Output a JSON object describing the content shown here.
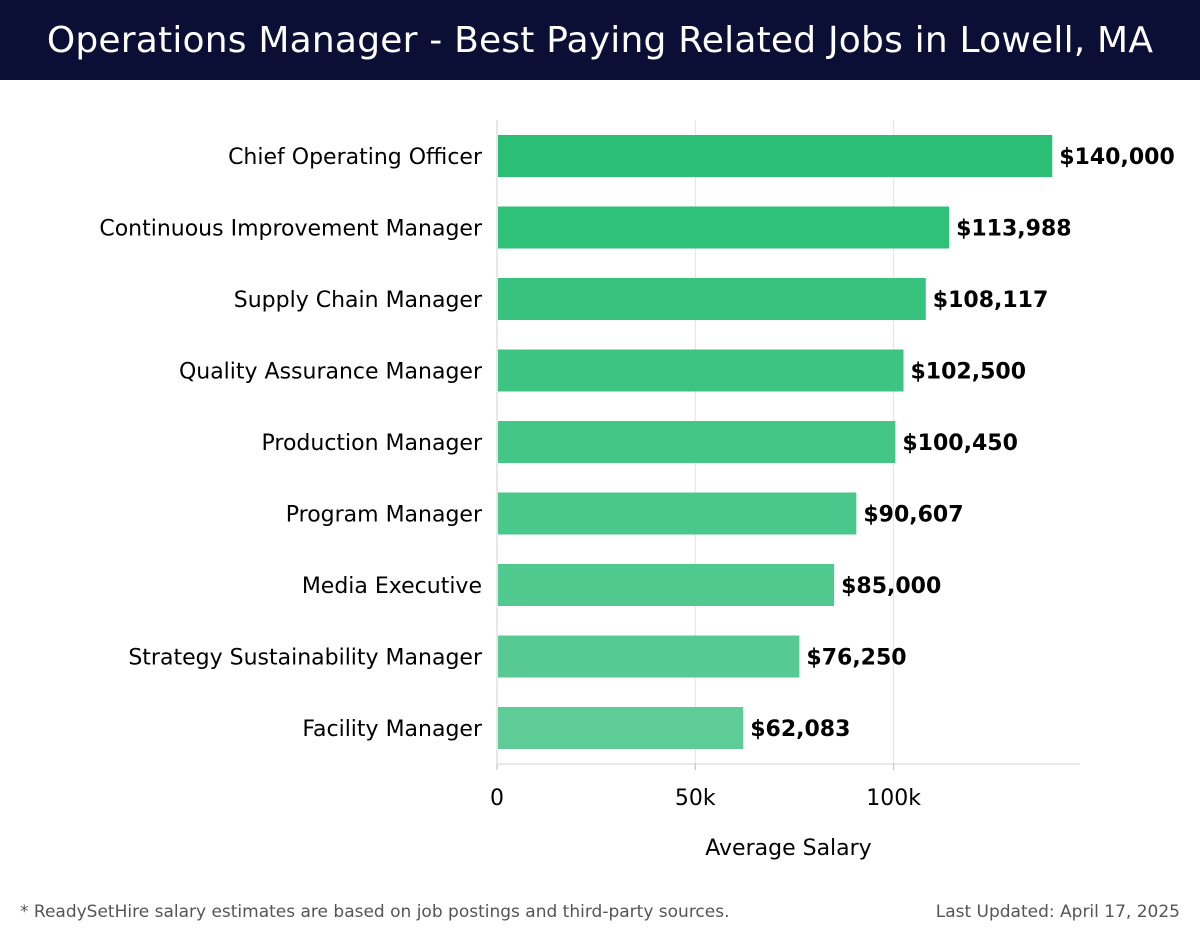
{
  "header": {
    "title": "Operations Manager - Best Paying Related Jobs in Lowell, MA"
  },
  "footer": {
    "note": "* ReadySetHire salary estimates are based on job postings and third-party sources.",
    "updated": "Last Updated: April 17, 2025"
  },
  "colors": {
    "header_bg": "#0b0e35",
    "bar_top": "#2abf75",
    "bar_bottom": "#5dcc97"
  },
  "chart_data": {
    "type": "bar",
    "orientation": "horizontal",
    "title": "Operations Manager - Best Paying Related Jobs in Lowell, MA",
    "xlabel": "Average Salary",
    "ylabel": "",
    "xlim": [
      0,
      147000
    ],
    "xticks": [
      0,
      50000,
      100000
    ],
    "xtick_labels": [
      "0",
      "50k",
      "100k"
    ],
    "grid": "vertical",
    "categories": [
      "Chief Operating Officer",
      "Continuous Improvement Manager",
      "Supply Chain Manager",
      "Quality Assurance Manager",
      "Production Manager",
      "Program Manager",
      "Media Executive",
      "Strategy Sustainability Manager",
      "Facility Manager"
    ],
    "values": [
      140000,
      113988,
      108117,
      102500,
      100450,
      90607,
      85000,
      76250,
      62083
    ],
    "value_labels": [
      "$140,000",
      "$113,988",
      "$108,117",
      "$102,500",
      "$100,450",
      "$90,607",
      "$85,000",
      "$76,250",
      "$62,083"
    ]
  }
}
